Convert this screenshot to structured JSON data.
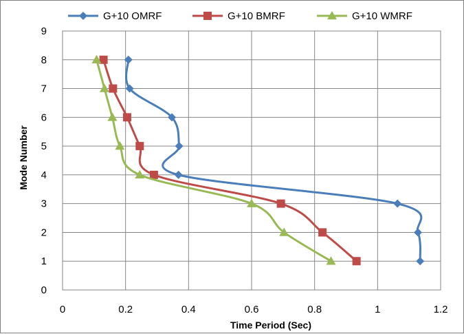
{
  "chart_data": {
    "type": "line",
    "xlabel": "Time Period (Sec)",
    "ylabel": "Mode Number",
    "xlim": [
      0,
      1.2
    ],
    "ylim": [
      0,
      9
    ],
    "xticks": [
      0,
      0.2,
      0.4,
      0.6,
      0.8,
      1,
      1.2
    ],
    "xtick_labels": [
      "0",
      "0.2",
      "0.4",
      "0.6",
      "0.8",
      "1",
      "1.2"
    ],
    "yticks": [
      0,
      1,
      2,
      3,
      4,
      5,
      6,
      7,
      8,
      9
    ],
    "ytick_labels": [
      "0",
      "1",
      "2",
      "3",
      "4",
      "5",
      "6",
      "7",
      "8",
      "9"
    ],
    "grid": true,
    "legend_position": "top",
    "series": [
      {
        "name": "G+10 OMRF",
        "color": "#4a7ebb",
        "marker": "diamond",
        "x": [
          1.135,
          1.128,
          1.063,
          0.368,
          0.37,
          0.347,
          0.213,
          0.209
        ],
        "y": [
          1,
          2,
          3,
          4,
          5,
          6,
          7,
          8
        ]
      },
      {
        "name": "G+10 BMRF",
        "color": "#be4b48",
        "marker": "square",
        "x": [
          0.933,
          0.825,
          0.693,
          0.29,
          0.245,
          0.205,
          0.16,
          0.13
        ],
        "y": [
          1,
          2,
          3,
          4,
          5,
          6,
          7,
          8
        ]
      },
      {
        "name": "G+10 WMRF",
        "color": "#98b954",
        "marker": "triangle",
        "x": [
          0.852,
          0.703,
          0.6,
          0.245,
          0.182,
          0.158,
          0.133,
          0.108
        ],
        "y": [
          1,
          2,
          3,
          4,
          5,
          6,
          7,
          8
        ]
      }
    ]
  }
}
